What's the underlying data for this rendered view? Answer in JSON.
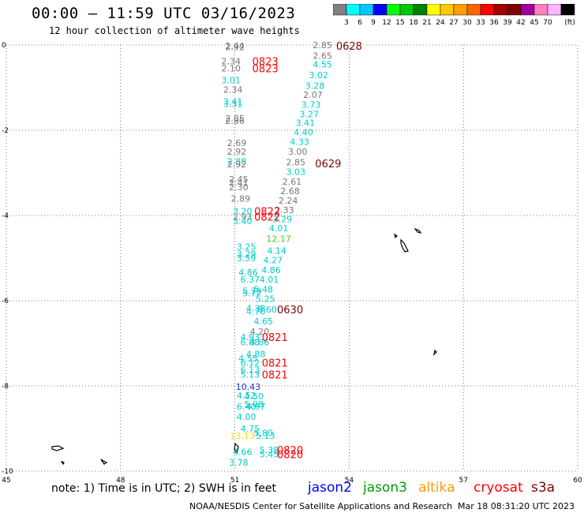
{
  "header": {
    "title": "00:00 – 11:59 UTC 03/16/2023",
    "subtitle": "12 hour collection of altimeter wave heights"
  },
  "colorbar": {
    "labels": [
      "3",
      "6",
      "9",
      "12",
      "15",
      "18",
      "21",
      "24",
      "27",
      "30",
      "33",
      "36",
      "39",
      "42",
      "45",
      "70"
    ],
    "unit": "(ft)",
    "colors": [
      "#808080",
      "#00ffff",
      "#00c8ff",
      "#0000ff",
      "#00ff00",
      "#00c800",
      "#008000",
      "#ffff00",
      "#ffc800",
      "#ffa000",
      "#ff6400",
      "#ff0000",
      "#a00000",
      "#800000",
      "#a000a0",
      "#ff80c0",
      "#ffb4ff",
      "#000000"
    ]
  },
  "axes": {
    "x_ticks": [
      "45",
      "48",
      "51",
      "54",
      "57",
      "60"
    ],
    "y_ticks": [
      "0",
      "-2",
      "-4",
      "-6",
      "-8",
      "-10"
    ],
    "lon_range": [
      45,
      60
    ],
    "lat_range": [
      -10,
      0
    ]
  },
  "observations": [
    {
      "v": "2.92",
      "lon": 51.0,
      "lat": -0.05,
      "c": "#777777"
    },
    {
      "v": "2.44",
      "lon": 51.0,
      "lat": -0.02,
      "c": "#777777"
    },
    {
      "v": "2.85",
      "lon": 53.3,
      "lat": 0.0,
      "c": "#777777"
    },
    {
      "v": "2.65",
      "lon": 53.3,
      "lat": -0.25,
      "c": "#777777"
    },
    {
      "v": "2.34",
      "lon": 50.9,
      "lat": -0.38,
      "c": "#777777"
    },
    {
      "v": "4.55",
      "lon": 53.3,
      "lat": -0.45,
      "c": "#00cccc"
    },
    {
      "v": "2.10",
      "lon": 50.9,
      "lat": -0.55,
      "c": "#777777"
    },
    {
      "v": "3.02",
      "lon": 53.2,
      "lat": -0.7,
      "c": "#00cccc"
    },
    {
      "v": "3.01",
      "lon": 50.9,
      "lat": -0.82,
      "c": "#00cccc"
    },
    {
      "v": "3.28",
      "lon": 53.1,
      "lat": -0.95,
      "c": "#00cccc"
    },
    {
      "v": "2.34",
      "lon": 50.95,
      "lat": -1.05,
      "c": "#777777"
    },
    {
      "v": "2.07",
      "lon": 53.05,
      "lat": -1.17,
      "c": "#777777"
    },
    {
      "v": "3.41",
      "lon": 50.95,
      "lat": -1.32,
      "c": "#00cccc"
    },
    {
      "v": "3.31",
      "lon": 50.95,
      "lat": -1.38,
      "c": "#00cccc"
    },
    {
      "v": "3.73",
      "lon": 53.0,
      "lat": -1.4,
      "c": "#00cccc"
    },
    {
      "v": "3.27",
      "lon": 52.95,
      "lat": -1.62,
      "c": "#00cccc"
    },
    {
      "v": "2.85",
      "lon": 51.0,
      "lat": -1.72,
      "c": "#777777"
    },
    {
      "v": "2.86",
      "lon": 51.0,
      "lat": -1.78,
      "c": "#777777"
    },
    {
      "v": "3.41",
      "lon": 52.85,
      "lat": -1.82,
      "c": "#00cccc"
    },
    {
      "v": "4.40",
      "lon": 52.8,
      "lat": -2.05,
      "c": "#00cccc"
    },
    {
      "v": "2.69",
      "lon": 51.05,
      "lat": -2.3,
      "c": "#777777"
    },
    {
      "v": "4.33",
      "lon": 52.7,
      "lat": -2.27,
      "c": "#00cccc"
    },
    {
      "v": "2.92",
      "lon": 51.05,
      "lat": -2.5,
      "c": "#777777"
    },
    {
      "v": "3.00",
      "lon": 52.65,
      "lat": -2.5,
      "c": "#777777"
    },
    {
      "v": "2.88",
      "lon": 51.05,
      "lat": -2.73,
      "c": "#00cccc"
    },
    {
      "v": "2.92",
      "lon": 51.05,
      "lat": -2.8,
      "c": "#777777"
    },
    {
      "v": "2.85",
      "lon": 52.6,
      "lat": -2.75,
      "c": "#777777"
    },
    {
      "v": "3.03",
      "lon": 52.6,
      "lat": -2.97,
      "c": "#00cccc"
    },
    {
      "v": "2.45",
      "lon": 51.1,
      "lat": -3.15,
      "c": "#777777"
    },
    {
      "v": "2.61",
      "lon": 52.5,
      "lat": -3.2,
      "c": "#777777"
    },
    {
      "v": "2.41",
      "lon": 51.1,
      "lat": -3.23,
      "c": "#777777"
    },
    {
      "v": "2.30",
      "lon": 51.1,
      "lat": -3.33,
      "c": "#777777"
    },
    {
      "v": "2.68",
      "lon": 52.45,
      "lat": -3.43,
      "c": "#777777"
    },
    {
      "v": "2.89",
      "lon": 51.15,
      "lat": -3.6,
      "c": "#777777"
    },
    {
      "v": "2.24",
      "lon": 52.4,
      "lat": -3.65,
      "c": "#777777"
    },
    {
      "v": "2.33",
      "lon": 52.3,
      "lat": -3.87,
      "c": "#777777"
    },
    {
      "v": "3.20",
      "lon": 51.2,
      "lat": -3.9,
      "c": "#00cccc"
    },
    {
      "v": "2.93",
      "lon": 51.2,
      "lat": -4.03,
      "c": "#777777"
    },
    {
      "v": "3.29",
      "lon": 52.25,
      "lat": -4.08,
      "c": "#00cccc"
    },
    {
      "v": "3.40",
      "lon": 51.2,
      "lat": -4.13,
      "c": "#00cccc"
    },
    {
      "v": "4.01",
      "lon": 52.15,
      "lat": -4.3,
      "c": "#00cccc"
    },
    {
      "v": "12.17",
      "lon": 52.15,
      "lat": -4.55,
      "c": "#44cc22"
    },
    {
      "v": "3.25",
      "lon": 51.3,
      "lat": -4.73,
      "c": "#00cccc"
    },
    {
      "v": "4.14",
      "lon": 52.1,
      "lat": -4.82,
      "c": "#00cccc"
    },
    {
      "v": "3.29",
      "lon": 51.3,
      "lat": -4.9,
      "c": "#00cccc"
    },
    {
      "v": "3.59",
      "lon": 51.3,
      "lat": -5.0,
      "c": "#00cccc"
    },
    {
      "v": "4.27",
      "lon": 52.0,
      "lat": -5.05,
      "c": "#00cccc"
    },
    {
      "v": "4.86",
      "lon": 51.35,
      "lat": -5.33,
      "c": "#00cccc"
    },
    {
      "v": "4.86",
      "lon": 51.95,
      "lat": -5.28,
      "c": "#00cccc"
    },
    {
      "v": "6.37",
      "lon": 51.4,
      "lat": -5.5,
      "c": "#00cccc"
    },
    {
      "v": "4.01",
      "lon": 51.9,
      "lat": -5.5,
      "c": "#00cccc"
    },
    {
      "v": "5.48",
      "lon": 51.75,
      "lat": -5.73,
      "c": "#00cccc"
    },
    {
      "v": "5.79",
      "lon": 51.45,
      "lat": -5.77,
      "c": "#00cccc"
    },
    {
      "v": "5.72",
      "lon": 51.45,
      "lat": -5.82,
      "c": "#00cccc"
    },
    {
      "v": "5.25",
      "lon": 51.8,
      "lat": -5.95,
      "c": "#00cccc"
    },
    {
      "v": "4.38",
      "lon": 51.55,
      "lat": -6.18,
      "c": "#00cccc"
    },
    {
      "v": "6.60",
      "lon": 51.85,
      "lat": -6.2,
      "c": "#00cccc"
    },
    {
      "v": "4.70",
      "lon": 51.55,
      "lat": -6.25,
      "c": "#00cccc"
    },
    {
      "v": "4.65",
      "lon": 51.75,
      "lat": -6.48,
      "c": "#00cccc"
    },
    {
      "v": "4.20",
      "lon": 51.65,
      "lat": -6.72,
      "c": "#777777"
    },
    {
      "v": "4.93",
      "lon": 51.4,
      "lat": -6.85,
      "c": "#00cccc"
    },
    {
      "v": "6.88",
      "lon": 51.4,
      "lat": -6.97,
      "c": "#00cccc"
    },
    {
      "v": "4.86",
      "lon": 51.65,
      "lat": -6.97,
      "c": "#00cccc"
    },
    {
      "v": "4.88",
      "lon": 51.55,
      "lat": -7.25,
      "c": "#00cccc"
    },
    {
      "v": "4.55",
      "lon": 51.35,
      "lat": -7.35,
      "c": "#00cccc"
    },
    {
      "v": "6.12",
      "lon": 51.4,
      "lat": -7.45,
      "c": "#00cccc"
    },
    {
      "v": "6.13",
      "lon": 51.4,
      "lat": -7.62,
      "c": "#00cccc"
    },
    {
      "v": "5.13",
      "lon": 51.4,
      "lat": -7.73,
      "c": "#00cccc"
    },
    {
      "v": "10.43",
      "lon": 51.35,
      "lat": -8.02,
      "c": "#1a33cc"
    },
    {
      "v": "4.52",
      "lon": 51.3,
      "lat": -8.22,
      "c": "#00cccc"
    },
    {
      "v": "4.50",
      "lon": 51.5,
      "lat": -8.24,
      "c": "#00cccc"
    },
    {
      "v": "5.08",
      "lon": 51.5,
      "lat": -8.43,
      "c": "#00cccc"
    },
    {
      "v": "6.40",
      "lon": 51.3,
      "lat": -8.48,
      "c": "#00cccc"
    },
    {
      "v": "4.97",
      "lon": 51.55,
      "lat": -8.48,
      "c": "#00cccc"
    },
    {
      "v": "4.00",
      "lon": 51.3,
      "lat": -8.72,
      "c": "#00cccc"
    },
    {
      "v": "4.75",
      "lon": 51.4,
      "lat": -9.0,
      "c": "#00cccc"
    },
    {
      "v": "5.80",
      "lon": 51.75,
      "lat": -9.1,
      "c": "#00cccc"
    },
    {
      "v": "13.13",
      "lon": 51.2,
      "lat": -9.17,
      "c": "#ffdd00"
    },
    {
      "v": "5.13",
      "lon": 51.8,
      "lat": -9.17,
      "c": "#00cccc"
    },
    {
      "v": "5.38",
      "lon": 51.9,
      "lat": -9.5,
      "c": "#00cccc"
    },
    {
      "v": "4.66",
      "lon": 51.2,
      "lat": -9.55,
      "c": "#00cccc"
    },
    {
      "v": "5.45",
      "lon": 51.9,
      "lat": -9.6,
      "c": "#00cccc"
    },
    {
      "v": "3.78",
      "lon": 51.1,
      "lat": -9.8,
      "c": "#00cccc"
    }
  ],
  "time_labels": [
    {
      "t": "0628",
      "lon": 54.0,
      "lat": -0.02,
      "c": "#800000"
    },
    {
      "t": "0823",
      "lon": 51.8,
      "lat": -0.38,
      "c": "#ff0000"
    },
    {
      "t": "0823",
      "lon": 51.8,
      "lat": -0.55,
      "c": "#ff0000"
    },
    {
      "t": "0629",
      "lon": 53.45,
      "lat": -2.78,
      "c": "#800000"
    },
    {
      "t": "0822",
      "lon": 51.85,
      "lat": -3.9,
      "c": "#ff0000"
    },
    {
      "t": "0822",
      "lon": 51.85,
      "lat": -4.03,
      "c": "#ff0000"
    },
    {
      "t": "0630",
      "lon": 52.45,
      "lat": -6.2,
      "c": "#800000"
    },
    {
      "t": "0821",
      "lon": 52.05,
      "lat": -6.85,
      "c": "#ff0000"
    },
    {
      "t": "0821",
      "lon": 52.05,
      "lat": -7.45,
      "c": "#ff0000"
    },
    {
      "t": "0821",
      "lon": 52.05,
      "lat": -7.73,
      "c": "#ff0000"
    },
    {
      "t": "0820",
      "lon": 52.45,
      "lat": -9.5,
      "c": "#ff0000"
    },
    {
      "t": "0820",
      "lon": 52.45,
      "lat": -9.6,
      "c": "#ff0000"
    }
  ],
  "footer": {
    "note": "note: 1) Time is in UTC; 2) SWH is in feet",
    "satellites": [
      {
        "name": "jason2",
        "color": "#0000ff"
      },
      {
        "name": "jason3",
        "color": "#00a000"
      },
      {
        "name": "altika",
        "color": "#ff9900"
      },
      {
        "name": "cryosat",
        "color": "#ff0000"
      },
      {
        "name": "s3a",
        "color": "#800000"
      }
    ],
    "credit": "NOAA/NESDIS Center for Satellite Applications and Research",
    "timestamp": "Mar 18 08:31:20 UTC 2023"
  }
}
